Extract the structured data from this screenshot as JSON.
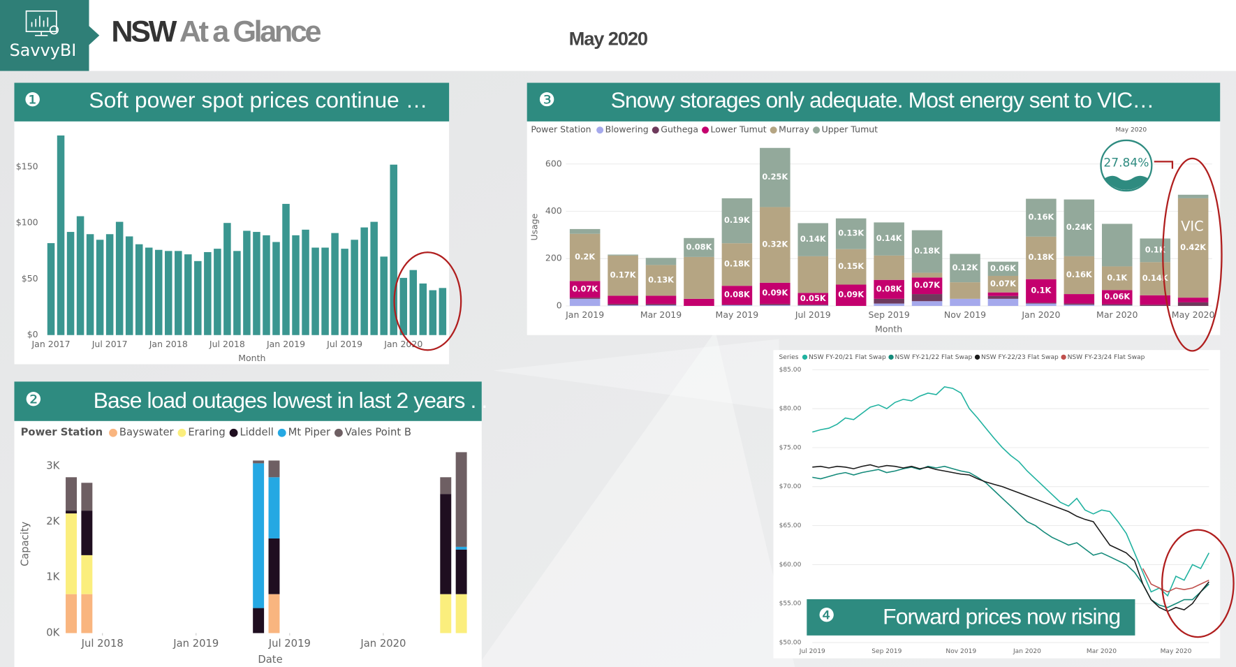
{
  "header": {
    "logo": "SavvyBI",
    "title_part1": "NSW",
    "title_part2": "At a Glance",
    "date": "May 2020"
  },
  "chart_data": [
    {
      "type": "bar",
      "badge": "❶",
      "title": "Soft power spot prices continue …",
      "x_label": "Month",
      "categories": [
        "Jan 2017",
        null,
        null,
        null,
        null,
        null,
        "Jul 2017",
        null,
        null,
        null,
        null,
        null,
        "Jan 2018",
        null,
        null,
        null,
        null,
        null,
        "Jul 2018",
        null,
        null,
        null,
        null,
        null,
        "Jan 2019",
        null,
        null,
        null,
        null,
        null,
        "Jul 2019",
        null,
        null,
        null,
        null,
        null,
        "Jan 2020",
        null,
        null,
        null,
        null
      ],
      "values": [
        82,
        178,
        92,
        106,
        90,
        85,
        90,
        101,
        88,
        81,
        78,
        76,
        75,
        75,
        72,
        66,
        74,
        77,
        100,
        75,
        93,
        92,
        89,
        83,
        117,
        89,
        94,
        78,
        78,
        91,
        77,
        85,
        96,
        101,
        70,
        152,
        51,
        58,
        46,
        40,
        42
      ],
      "color": "#3a9690",
      "ylim": [
        0,
        180
      ],
      "yticks": [
        {
          "value": 0,
          "label": "$0"
        },
        {
          "value": 50,
          "label": "$50"
        },
        {
          "value": 100,
          "label": "$100"
        },
        {
          "value": 150,
          "label": "$150"
        }
      ],
      "grid": false
    },
    {
      "type": "bar",
      "badge": "❷",
      "title": "Base load outages lowest in last 2 years . .",
      "legend_title": "Power Station",
      "x_label": "Date",
      "y_label": "Capacity",
      "stacked": true,
      "x": [
        "2018-05",
        "2018-06",
        "2019-05",
        "2019-06",
        "2020-05",
        "2020-06"
      ],
      "series": [
        {
          "name": "Bayswater",
          "color": "#f9b57f",
          "values": [
            700,
            700,
            0,
            700,
            0,
            0
          ]
        },
        {
          "name": "Eraring",
          "color": "#fbee7d",
          "values": [
            1450,
            700,
            0,
            0,
            700,
            700
          ]
        },
        {
          "name": "Liddell",
          "color": "#1f0e20",
          "values": [
            50,
            800,
            450,
            1000,
            1800,
            800
          ]
        },
        {
          "name": "Mt Piper",
          "color": "#25a8e3",
          "values": [
            0,
            0,
            2600,
            1100,
            0,
            50
          ]
        },
        {
          "name": "Vales Point B",
          "color": "#6e5f63",
          "values": [
            600,
            500,
            50,
            300,
            300,
            1700
          ]
        }
      ],
      "xlim": [
        "2018-04",
        "2020-07"
      ],
      "xticks": [
        {
          "value": "2018-07",
          "label": "Jul 2018"
        },
        {
          "value": "2019-01",
          "label": "Jan 2019"
        },
        {
          "value": "2019-07",
          "label": "Jul 2019"
        },
        {
          "value": "2020-01",
          "label": "Jan 2020"
        }
      ],
      "ylim": [
        0,
        3300
      ],
      "yticks": [
        {
          "value": 0,
          "label": "0K"
        },
        {
          "value": 1000,
          "label": "1K"
        },
        {
          "value": 2000,
          "label": "2K"
        },
        {
          "value": 3000,
          "label": "3K"
        }
      ],
      "grid": false
    },
    {
      "type": "bar",
      "badge": "❸",
      "title": "Snowy storages only adequate. Most energy sent to VIC…",
      "legend_title": "Power Station",
      "x_label": "Month",
      "y_label": "Usage",
      "stacked": true,
      "annotations": [
        "May 2020",
        "27.84%",
        "VIC"
      ],
      "categories": [
        "Jan 2019",
        null,
        "Mar 2019",
        null,
        "May 2019",
        null,
        "Jul 2019",
        null,
        "Sep 2019",
        null,
        "Nov 2019",
        null,
        "Jan 2020",
        null,
        "Mar 2020",
        null,
        "May 2020"
      ],
      "series": [
        {
          "name": "Blowering",
          "color": "#a5a9ec",
          "values": [
            30,
            3,
            3,
            0,
            3,
            3,
            2,
            0,
            10,
            20,
            30,
            30,
            10,
            5,
            2,
            0,
            0
          ]
        },
        {
          "name": "Guthega",
          "color": "#6e3a5c",
          "values": [
            5,
            5,
            5,
            0,
            2,
            5,
            3,
            0,
            20,
            30,
            0,
            12,
            3,
            5,
            5,
            5,
            15
          ]
        },
        {
          "name": "Lower Tumut",
          "color": "#c4006e",
          "values": [
            70,
            35,
            35,
            30,
            80,
            90,
            50,
            90,
            80,
            70,
            0,
            15,
            100,
            40,
            60,
            40,
            20
          ],
          "value_labels": [
            "0.07K",
            null,
            null,
            null,
            "0.08K",
            "0.09K",
            "0.05K",
            "0.09K",
            "0.08K",
            "0.07K",
            null,
            null,
            "0.1K",
            null,
            "0.06K",
            null,
            null
          ]
        },
        {
          "name": "Murray",
          "color": "#b5a583",
          "values": [
            200,
            170,
            130,
            177,
            180,
            320,
            155,
            150,
            103,
            20,
            70,
            70,
            180,
            160,
            100,
            140,
            420
          ],
          "value_labels": [
            "0.2K",
            "0.17K",
            "0.13K",
            null,
            "0.18K",
            "0.32K",
            null,
            "0.15K",
            null,
            null,
            null,
            "0.07K",
            "0.18K",
            "0.16K",
            "0.1K",
            "0.14K",
            "0.42K"
          ]
        },
        {
          "name": "Upper Tumut",
          "color": "#93a99b",
          "values": [
            20,
            4,
            30,
            80,
            190,
            250,
            140,
            130,
            140,
            180,
            120,
            60,
            160,
            240,
            180,
            100,
            15
          ],
          "value_labels": [
            null,
            null,
            null,
            "0.08K",
            "0.19K",
            "0.25K",
            "0.14K",
            "0.13K",
            "0.14K",
            "0.18K",
            "0.12K",
            "0.06K",
            "0.16K",
            "0.24K",
            null,
            "0.1K",
            null
          ]
        }
      ],
      "ylim": [
        0,
        680
      ],
      "yticks": [
        0,
        200,
        400,
        600
      ],
      "grid": true
    },
    {
      "type": "line",
      "badge": "❹",
      "title": "Forward prices now rising",
      "legend_title": "Series",
      "categories": [
        "Jul 2019",
        null,
        null,
        null,
        null,
        null,
        null,
        null,
        null,
        "Sep 2019",
        null,
        null,
        null,
        null,
        null,
        null,
        null,
        null,
        "Nov 2019",
        null,
        null,
        null,
        null,
        null,
        null,
        null,
        "Jan 2020",
        null,
        null,
        null,
        null,
        null,
        null,
        null,
        null,
        "Mar 2020",
        null,
        null,
        null,
        null,
        null,
        null,
        null,
        null,
        "May 2020",
        null,
        null,
        null,
        null
      ],
      "series": [
        {
          "name": "NSW FY-20/21 Flat Swap",
          "color": "#20b2a0",
          "values": [
            77.0,
            77.3,
            77.5,
            78.0,
            78.8,
            78.6,
            79.4,
            80.2,
            80.5,
            80.0,
            80.8,
            81.2,
            81.0,
            81.6,
            82.0,
            81.8,
            82.8,
            82.6,
            82.0,
            80.0,
            78.8,
            77.5,
            76.2,
            75.0,
            74.0,
            73.2,
            72.0,
            71.0,
            70.0,
            69.0,
            68.0,
            67.5,
            68.5,
            67.0,
            66.5,
            67.0,
            66.8,
            65.5,
            64.0,
            61.5,
            59.0,
            56.5,
            57.0,
            56.0,
            58.5,
            58.0,
            60.0,
            59.5,
            61.5
          ]
        },
        {
          "name": "NSW FY-21/22 Flat Swap",
          "color": "#138a7a",
          "values": [
            71.2,
            71.0,
            71.3,
            71.6,
            71.8,
            71.5,
            71.8,
            72.0,
            72.2,
            71.8,
            72.0,
            72.3,
            72.5,
            72.2,
            72.6,
            72.4,
            72.6,
            72.3,
            72.0,
            71.8,
            71.2,
            70.5,
            69.5,
            68.5,
            67.5,
            66.5,
            65.5,
            65.0,
            64.2,
            63.5,
            63.0,
            62.5,
            62.8,
            62.0,
            61.2,
            61.5,
            61.0,
            60.5,
            60.0,
            59.0,
            57.5,
            55.5,
            54.8,
            54.5,
            55.0,
            55.5,
            55.5,
            56.5,
            57.5
          ]
        },
        {
          "name": "NSW FY-22/23 Flat Swap",
          "color": "#1a1a1a",
          "values": [
            72.5,
            72.6,
            72.4,
            72.6,
            72.5,
            72.3,
            72.6,
            72.8,
            72.5,
            72.7,
            72.6,
            72.4,
            72.6,
            72.3,
            72.5,
            72.2,
            72.0,
            71.8,
            71.6,
            71.5,
            71.0,
            70.6,
            70.3,
            70.0,
            69.6,
            69.2,
            68.8,
            68.4,
            68.0,
            67.6,
            67.2,
            66.8,
            66.2,
            65.8,
            65.5,
            64.0,
            62.5,
            62.0,
            61.5,
            60.5,
            57.5,
            55.5,
            54.5,
            54.0,
            54.5,
            54.2,
            55.0,
            56.5,
            57.8
          ]
        },
        {
          "name": "NSW FY-23/24 Flat Swap",
          "color": "#c0504d",
          "values": [
            null,
            null,
            null,
            null,
            null,
            null,
            null,
            null,
            null,
            null,
            null,
            null,
            null,
            null,
            null,
            null,
            null,
            null,
            null,
            null,
            null,
            null,
            null,
            null,
            null,
            null,
            null,
            null,
            null,
            null,
            null,
            null,
            null,
            null,
            null,
            null,
            null,
            null,
            null,
            null,
            59.5,
            57.5,
            57.0,
            56.5,
            57.0,
            56.8,
            57.0,
            57.5,
            58.0
          ]
        }
      ],
      "ylim": [
        50,
        86
      ],
      "yticks": [
        {
          "value": 50,
          "label": "$50.00"
        },
        {
          "value": 55,
          "label": "$55.00"
        },
        {
          "value": 60,
          "label": "$60.00"
        },
        {
          "value": 65,
          "label": "$65.00"
        },
        {
          "value": 70,
          "label": "$70.00"
        },
        {
          "value": 75,
          "label": "$75.00"
        },
        {
          "value": 80,
          "label": "$80.00"
        },
        {
          "value": 85,
          "label": "$85.00"
        }
      ],
      "grid": true
    }
  ]
}
